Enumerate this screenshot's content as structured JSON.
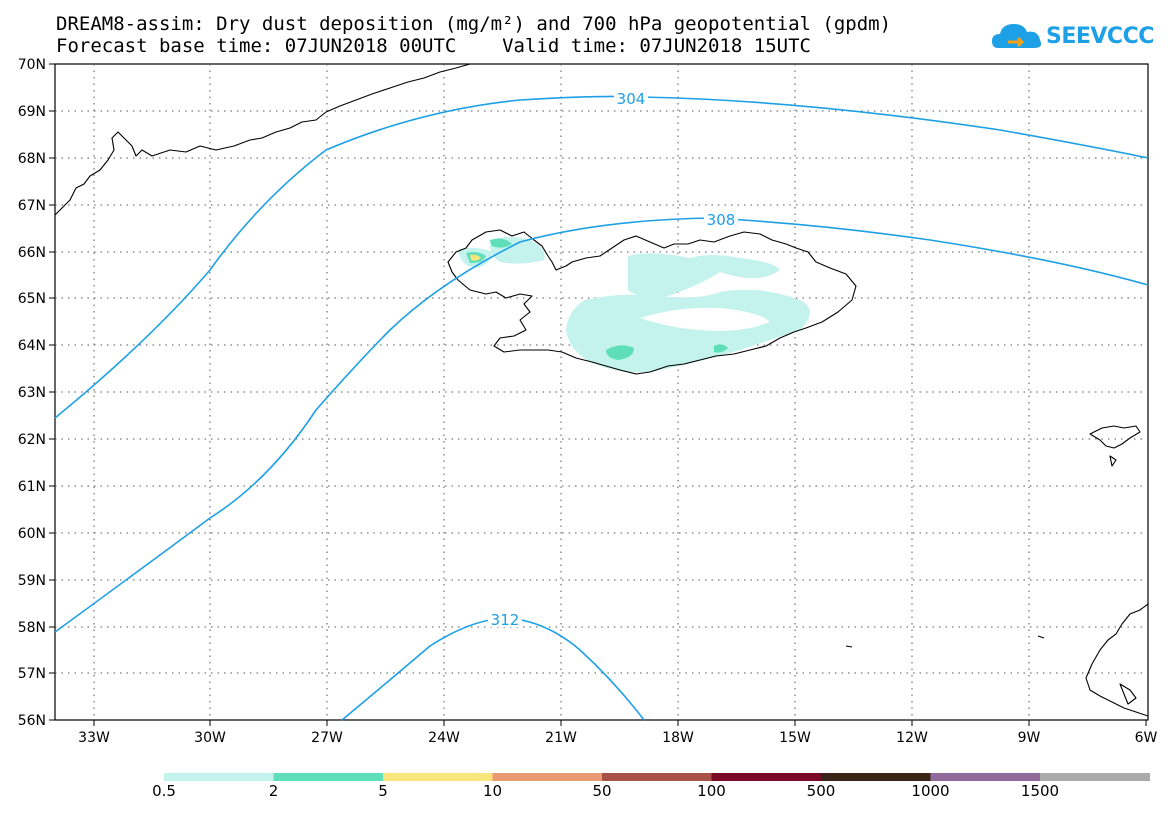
{
  "title": {
    "line1": "DREAM8-assim: Dry dust deposition (mg/m²) and 700 hPa geopotential (gpdm)",
    "line2": "Forecast base time: 07JUN2018 00UTC    Valid time: 07JUN2018 15UTC"
  },
  "logo": {
    "text": "SEEVCCC"
  },
  "map": {
    "lat_labels": [
      "70N",
      "69N",
      "68N",
      "67N",
      "66N",
      "65N",
      "64N",
      "63N",
      "62N",
      "61N",
      "60N",
      "59N",
      "58N",
      "57N",
      "56N"
    ],
    "lon_labels": [
      "33W",
      "30W",
      "27W",
      "24W",
      "21W",
      "18W",
      "15W",
      "12W",
      "9W",
      "6W"
    ],
    "contour_labels": [
      "304",
      "308",
      "312"
    ],
    "contour_color": "#1ea0e6",
    "grid": "dotted"
  },
  "legend": {
    "colors": [
      "#c4f2ec",
      "#5edfba",
      "#f8e67c",
      "#ea9a72",
      "#a85148",
      "#7a0a28",
      "#3a2418",
      "#8f6a9a",
      "#aaaaaa"
    ],
    "labels": [
      "0.5",
      "2",
      "5",
      "10",
      "50",
      "100",
      "500",
      "1000",
      "1500"
    ]
  }
}
